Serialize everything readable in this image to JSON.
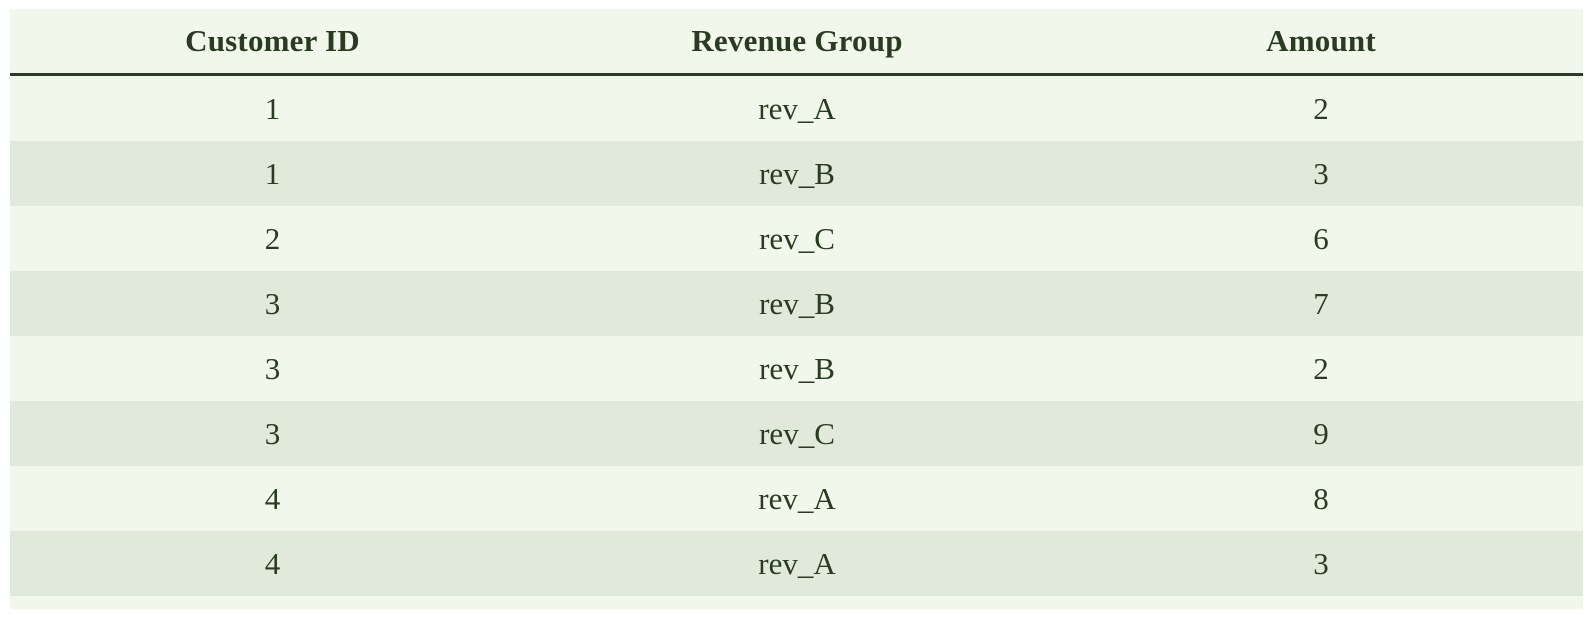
{
  "table": {
    "headers": [
      "Customer ID",
      "Revenue Group",
      "Amount"
    ],
    "rows": [
      [
        "1",
        "rev_A",
        "2"
      ],
      [
        "1",
        "rev_B",
        "3"
      ],
      [
        "2",
        "rev_C",
        "6"
      ],
      [
        "3",
        "rev_B",
        "7"
      ],
      [
        "3",
        "rev_B",
        "2"
      ],
      [
        "3",
        "rev_C",
        "9"
      ],
      [
        "4",
        "rev_A",
        "8"
      ],
      [
        "4",
        "rev_A",
        "3"
      ]
    ]
  },
  "colors": {
    "text": "#2b3a22",
    "row_light": "#f2f7eb",
    "row_dark": "#e1e9da"
  }
}
